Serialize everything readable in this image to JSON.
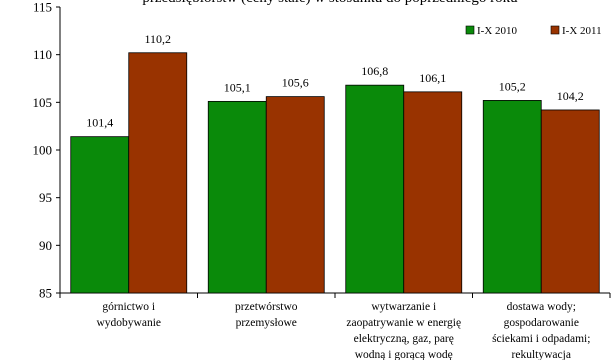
{
  "chart_data": {
    "type": "bar",
    "title": "przedsiębiorstw (ceny stałe) w stosunku do poprzedniego roku",
    "categories": [
      [
        "górnictwo i",
        "wydobywanie"
      ],
      [
        "przetwórstwo",
        "przemysłowe"
      ],
      [
        "wytwarzanie i",
        "zaopatrywanie w energię",
        "elektryczną, gaz, parę",
        "wodną i gorącą wodę"
      ],
      [
        "dostawa wody;",
        "gospodarowanie",
        "ściekami i odpadami;",
        "rekultywacja"
      ]
    ],
    "series": [
      {
        "name": "I-X 2010",
        "color": "#0a8a0a",
        "values": [
          101.4,
          105.1,
          106.8,
          105.2
        ],
        "labels": [
          "101,4",
          "105,1",
          "106,8",
          "105,2"
        ]
      },
      {
        "name": "I-X 2011",
        "color": "#993300",
        "values": [
          110.2,
          105.6,
          106.1,
          104.2
        ],
        "labels": [
          "110,2",
          "105,6",
          "106,1",
          "104,2"
        ]
      }
    ],
    "ylim": [
      85,
      115
    ],
    "yticks": [
      85,
      90,
      95,
      100,
      105,
      110,
      115
    ],
    "grid": false,
    "legend_position": "top-right",
    "xlabel": "",
    "ylabel": ""
  }
}
